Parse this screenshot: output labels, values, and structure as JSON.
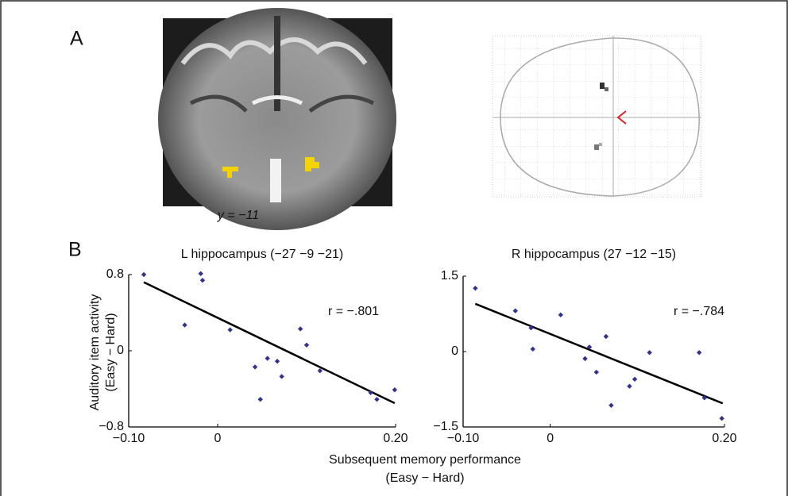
{
  "panel_labels": [
    "A",
    "B"
  ],
  "brain_caption": "y = −11",
  "shared_axes": {
    "y_label": [
      "Auditory item activity",
      "(Easy − Hard)"
    ],
    "x_label": [
      "Subsequent memory performance",
      "(Easy − Hard)"
    ]
  },
  "chart_data": [
    {
      "type": "scatter",
      "title": "L hippocampus (−27 −9 −21)",
      "annotation": "r = −.801",
      "color": "#33338f",
      "x": [
        -0.083,
        -0.019,
        -0.017,
        -0.037,
        0.014,
        0.093,
        0.1,
        0.056,
        0.067,
        0.042,
        0.072,
        0.115,
        0.048,
        0.172,
        0.179,
        0.199
      ],
      "values": [
        0.8,
        0.81,
        0.74,
        0.27,
        0.22,
        0.23,
        0.06,
        -0.08,
        -0.11,
        -0.17,
        -0.27,
        -0.21,
        -0.51,
        -0.44,
        -0.51,
        -0.41
      ],
      "fit_line": {
        "x": [
          -0.083,
          0.199
        ],
        "y": [
          0.72,
          -0.55
        ]
      },
      "xlim": [
        -0.1,
        0.2
      ],
      "ylim": [
        -0.8,
        0.8
      ],
      "xticks": [
        {
          "value": -0.1,
          "label": "−0.10"
        },
        0,
        {
          "value": 0.2,
          "label": "0.20"
        }
      ],
      "yticks": [
        {
          "value": -0.8,
          "label": "−0.8"
        },
        0,
        0.8
      ]
    },
    {
      "type": "scatter",
      "title": "R hippocampus (27 −12 −15)",
      "annotation": "r = −.784",
      "color": "#33338f",
      "x": [
        -0.086,
        -0.04,
        -0.022,
        -0.02,
        0.012,
        0.04,
        0.045,
        0.053,
        0.064,
        0.07,
        0.091,
        0.097,
        0.114,
        0.171,
        0.177,
        0.197
      ],
      "values": [
        1.26,
        0.81,
        0.47,
        0.05,
        0.73,
        -0.14,
        0.09,
        -0.41,
        0.3,
        -1.07,
        -0.69,
        -0.55,
        -0.02,
        -0.02,
        -0.92,
        -1.33
      ],
      "fit_line": {
        "x": [
          -0.086,
          0.198
        ],
        "y": [
          0.95,
          -1.03
        ]
      },
      "xlim": [
        -0.1,
        0.2
      ],
      "ylim": [
        -1.5,
        1.5
      ],
      "xticks": [
        {
          "value": -0.1,
          "label": "−0.10"
        },
        0,
        {
          "value": 0.2,
          "label": "0.20"
        }
      ],
      "yticks": [
        {
          "value": -1.5,
          "label": "−1.5"
        },
        0,
        1.5
      ]
    }
  ]
}
